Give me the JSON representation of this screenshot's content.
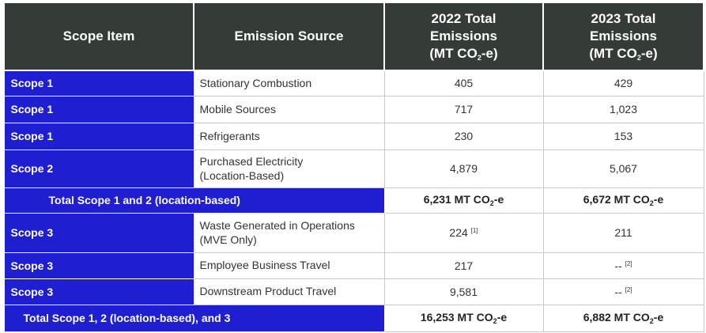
{
  "headers": {
    "scope_item": "Scope Item",
    "emission_source": "Emission Source",
    "y2022": {
      "line1": "2022 Total",
      "line2": "Emissions",
      "unit_pre": "(MT CO",
      "unit_sub": "2",
      "unit_post": "-e)"
    },
    "y2023": {
      "line1": "2023 Total",
      "line2": "Emissions",
      "unit_pre": "(MT CO",
      "unit_sub": "2",
      "unit_post": "-e)"
    }
  },
  "rows": [
    {
      "scope": "Scope 1",
      "source": "Stationary Combustion",
      "v2022": "405",
      "v2023": "429"
    },
    {
      "scope": "Scope 1",
      "source": "Mobile Sources",
      "v2022": "717",
      "v2023": "1,023"
    },
    {
      "scope": "Scope 1",
      "source": "Refrigerants",
      "v2022": "230",
      "v2023": "153"
    },
    {
      "scope": "Scope 2",
      "source_line1": "Purchased Electricity",
      "source_line2": "(Location-Based)",
      "v2022": "4,879",
      "v2023": "5,067"
    },
    {
      "total_label": "Total Scope 1 and 2 (location-based)",
      "t2022": "6,231 MT CO",
      "t2022_sub": "2",
      "t2022_post": "-e",
      "t2023": "6,672 MT CO",
      "t2023_sub": "2",
      "t2023_post": "-e"
    },
    {
      "scope": "Scope 3",
      "source_line1": "Waste Generated in Operations",
      "source_line2": "(MVE Only)",
      "v2022": "224",
      "v2022_note": "[1]",
      "v2023": "211"
    },
    {
      "scope": "Scope 3",
      "source": "Employee Business Travel",
      "v2022": "217",
      "v2023": "--",
      "v2023_note": "[2]"
    },
    {
      "scope": "Scope 3",
      "source": "Downstream Product Travel",
      "v2022": "9,581",
      "v2023": "--",
      "v2023_note": "[2]"
    },
    {
      "total_label": "Total Scope 1, 2 (location-based), and 3",
      "t2022": "16,253 MT CO",
      "t2022_sub": "2",
      "t2022_post": "-e",
      "t2023": "6,882 MT CO",
      "t2023_sub": "2",
      "t2023_post": "-e"
    }
  ],
  "colors": {
    "header_bg": "#353b37",
    "scope_bg": "#1f1fd1"
  }
}
